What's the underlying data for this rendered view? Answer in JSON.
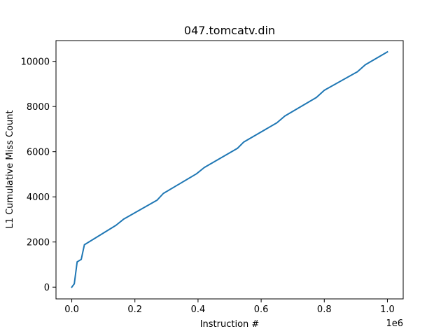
{
  "chart_data": {
    "type": "line",
    "title": "047.tomcatv.din",
    "xlabel": "Instruction #",
    "ylabel": "L1 Cumulative Miss Count",
    "x_offset_label": "1e6",
    "xlim": [
      -0.05,
      1.05
    ],
    "ylim": [
      -520,
      10920
    ],
    "x_ticks": [
      0.0,
      0.2,
      0.4,
      0.6,
      0.8,
      1.0
    ],
    "x_tick_labels": [
      "0.0",
      "0.2",
      "0.4",
      "0.6",
      "0.8",
      "1.0"
    ],
    "y_ticks": [
      0,
      2000,
      4000,
      6000,
      8000,
      10000
    ],
    "y_tick_labels": [
      "0",
      "2000",
      "4000",
      "6000",
      "8000",
      "10000"
    ],
    "grid": false,
    "legend": "none",
    "series": [
      {
        "color": "#1f77b4",
        "x": [
          0.0,
          0.008,
          0.017,
          0.03,
          0.04,
          0.14,
          0.165,
          0.27,
          0.29,
          0.395,
          0.42,
          0.525,
          0.545,
          0.65,
          0.675,
          0.775,
          0.8,
          0.905,
          0.93,
          1.0
        ],
        "y": [
          0,
          150,
          1120,
          1230,
          1880,
          2740,
          3020,
          3850,
          4150,
          5020,
          5300,
          6150,
          6430,
          7280,
          7580,
          8400,
          8720,
          9540,
          9850,
          10420
        ]
      }
    ]
  }
}
